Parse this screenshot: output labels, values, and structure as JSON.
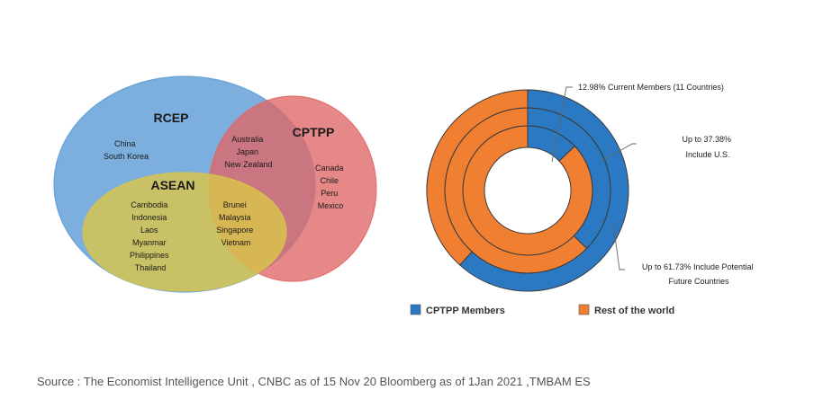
{
  "venn": {
    "rcep": {
      "title": "RCEP",
      "countries": [
        "China",
        "South Korea"
      ],
      "color": "#5b9bd5"
    },
    "cptpp": {
      "title": "CPTPP",
      "countries": [
        "Canada",
        "Chile",
        "Peru",
        "Mexico"
      ],
      "color": "#e06666"
    },
    "rcep_cptpp_overlap": {
      "countries": [
        "Australia",
        "Japan",
        "New Zealand"
      ]
    },
    "asean": {
      "title": "ASEAN",
      "countries": [
        "Cambodia",
        "Indonesia",
        "Laos",
        "Myanmar",
        "Philippines",
        "Thailand"
      ],
      "color": "#d9c44a"
    },
    "asean_cptpp_overlap": {
      "countries": [
        "Brunei",
        "Malaysia",
        "Singapore",
        "Vietnam"
      ]
    }
  },
  "donut": {
    "rings": [
      {
        "label": "12.98%  Current Members (11 Countries)",
        "members_pct": 12.98
      },
      {
        "label_lines": [
          "Up to 37.38%",
          "Include U.S."
        ],
        "members_pct": 37.38
      },
      {
        "label_lines": [
          "Up to 61.73% Include Potential",
          "Future Countries"
        ],
        "members_pct": 61.73
      }
    ],
    "legend": [
      {
        "label": "CPTPP Members",
        "color": "#2a79c2"
      },
      {
        "label": "Rest of the world",
        "color": "#f07f32"
      }
    ]
  },
  "source": "Source : The Economist Intelligence Unit , CNBC as of 15 Nov 20 Bloomberg as of 1Jan 2021 ,TMBAM ES"
}
